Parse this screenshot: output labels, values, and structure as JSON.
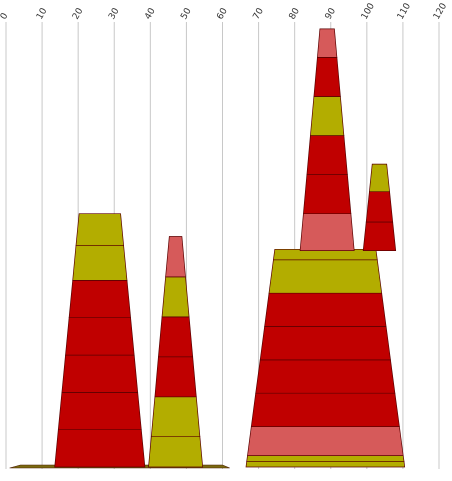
{
  "chart_data": {
    "type": "stacked-tower",
    "xlim": [
      0,
      120
    ],
    "ylim": [
      0,
      100
    ],
    "x_ticks": [
      "0",
      "10",
      "20",
      "30",
      "40",
      "50",
      "60",
      "70",
      "80",
      "90",
      "100",
      "110",
      "120"
    ],
    "grid": true,
    "legend": "none",
    "colors": {
      "dark_red": "#c00000",
      "olive": "#b3ad00",
      "salmon": "#d65a5a",
      "base": "#7a6a10",
      "grid": "#c8c8c8",
      "outline": "#4a1a00"
    },
    "towers": [
      {
        "x_center": 26,
        "base_width": 25,
        "segments": [
          {
            "color": "dark_red",
            "value": 8.5
          },
          {
            "color": "dark_red",
            "value": 8.5
          },
          {
            "color": "dark_red",
            "value": 8.5
          },
          {
            "color": "dark_red",
            "value": 8.5
          },
          {
            "color": "dark_red",
            "value": 8.5
          },
          {
            "color": "olive",
            "value": 8
          },
          {
            "color": "olive",
            "value": 7.2
          }
        ],
        "top_width": 11.5
      },
      {
        "x_center": 47,
        "base_width": 15,
        "segments": [
          {
            "color": "olive",
            "value": 6.9
          },
          {
            "color": "olive",
            "value": 9.1
          },
          {
            "color": "dark_red",
            "value": 9.1
          },
          {
            "color": "dark_red",
            "value": 9.1
          },
          {
            "color": "olive",
            "value": 9.1
          },
          {
            "color": "salmon",
            "value": 9.2
          }
        ],
        "top_width": 3.5
      },
      {
        "x_center": 88.5,
        "base_width": 44,
        "segments": [
          {
            "color": "olive",
            "value": 1.3
          },
          {
            "color": "olive",
            "value": 1.3
          },
          {
            "color": "salmon",
            "value": 6.6
          },
          {
            "color": "dark_red",
            "value": 7.6
          },
          {
            "color": "dark_red",
            "value": 7.6
          },
          {
            "color": "dark_red",
            "value": 7.6
          },
          {
            "color": "dark_red",
            "value": 7.6
          },
          {
            "color": "olive",
            "value": 7.6
          },
          {
            "color": "olive",
            "value": 2.4
          }
        ],
        "top_width": 28
      },
      {
        "x_center": 89,
        "base_width": 15,
        "base_value": 49.3,
        "segments": [
          {
            "color": "salmon",
            "value": 8.4
          },
          {
            "color": "dark_red",
            "value": 8.9
          },
          {
            "color": "dark_red",
            "value": 8.9
          },
          {
            "color": "olive",
            "value": 8.9
          },
          {
            "color": "dark_red",
            "value": 8.9
          },
          {
            "color": "salmon",
            "value": 6.5
          }
        ],
        "top_width": 4
      },
      {
        "x_center": 103.5,
        "base_width": 9,
        "base_value": 49.3,
        "segments": [
          {
            "color": "dark_red",
            "value": 6.5
          },
          {
            "color": "dark_red",
            "value": 6.9
          },
          {
            "color": "olive",
            "value": 6.3
          }
        ],
        "top_width": 4
      }
    ]
  }
}
